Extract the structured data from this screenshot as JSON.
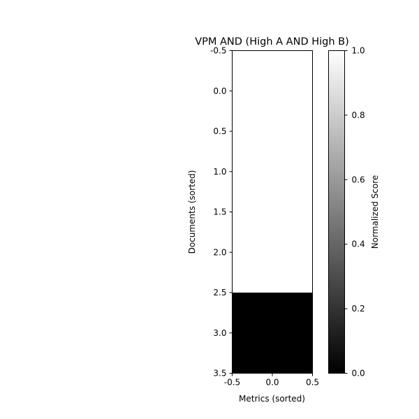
{
  "chart_data": {
    "type": "heatmap",
    "title": "VPM AND (High A AND High B)",
    "xlabel": "Metrics (sorted)",
    "ylabel": "Documents (sorted)",
    "xlim": [
      -0.5,
      0.5
    ],
    "ylim": [
      3.5,
      -0.5
    ],
    "xticks": [
      -0.5,
      0.0,
      0.5
    ],
    "yticks": [
      -0.5,
      0.0,
      0.5,
      1.0,
      1.5,
      2.0,
      2.5,
      3.0,
      3.5
    ],
    "columns": [
      0
    ],
    "rows": [
      0,
      1,
      2,
      3
    ],
    "values": [
      [
        1.0
      ],
      [
        1.0
      ],
      [
        1.0
      ],
      [
        0.0
      ]
    ],
    "colormap": "gray",
    "colorbar": {
      "label": "Normalized Score",
      "range": [
        0.0,
        1.0
      ],
      "ticks": [
        0.0,
        0.2,
        0.4,
        0.6,
        0.8,
        1.0
      ],
      "low_color": "#000000",
      "high_color": "#ffffff"
    },
    "grid": false
  }
}
